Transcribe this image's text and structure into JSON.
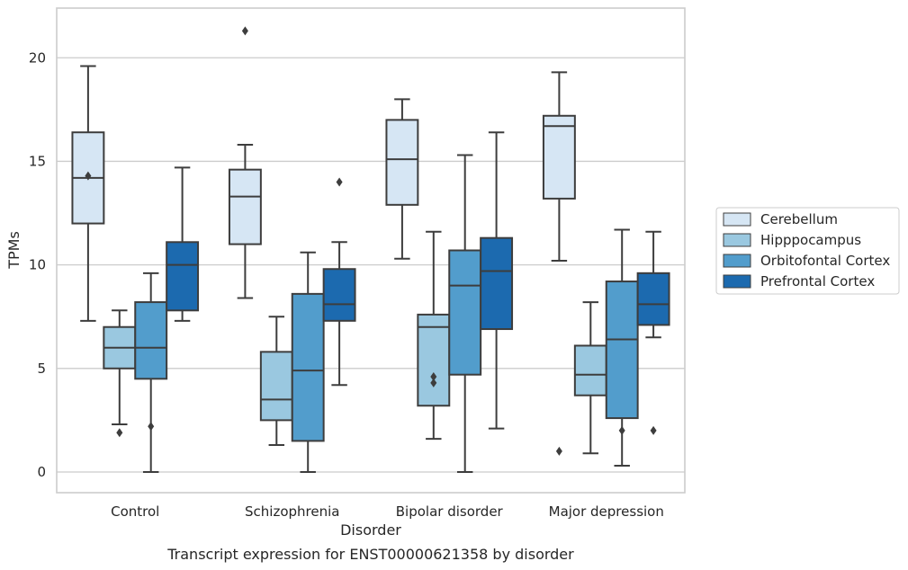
{
  "chart_data": {
    "type": "box",
    "title": "",
    "caption": "Transcript expression for ENST00000621358 by disorder",
    "xlabel": "Disorder",
    "ylabel": "TPMs",
    "ylim": [
      -1,
      22.4
    ],
    "yticks": [
      0,
      5,
      10,
      15,
      20
    ],
    "grid": "horizontal",
    "legend_position": "right",
    "categories": [
      "Control",
      "Schizophrenia",
      "Bipolar disorder",
      "Major depression"
    ],
    "series": [
      {
        "name": "Cerebellum",
        "color": "#d6e6f4",
        "boxes": [
          {
            "whislo": 7.3,
            "q1": 12.0,
            "med": 14.2,
            "q3": 16.4,
            "whishi": 19.6,
            "fliers": [
              14.3
            ]
          },
          {
            "whislo": 8.4,
            "q1": 11.0,
            "med": 13.3,
            "q3": 14.6,
            "whishi": 15.8,
            "fliers": [
              21.3
            ]
          },
          {
            "whislo": 10.3,
            "q1": 12.9,
            "med": 15.1,
            "q3": 17.0,
            "whishi": 18.0,
            "fliers": []
          },
          {
            "whislo": 10.2,
            "q1": 13.2,
            "med": 16.7,
            "q3": 17.2,
            "whishi": 19.3,
            "fliers": [
              1.0
            ]
          }
        ]
      },
      {
        "name": "Hipppocampus",
        "color": "#9ac8e0",
        "boxes": [
          {
            "whislo": 2.3,
            "q1": 5.0,
            "med": 6.0,
            "q3": 7.0,
            "whishi": 7.8,
            "fliers": [
              1.9
            ]
          },
          {
            "whislo": 1.3,
            "q1": 2.5,
            "med": 3.5,
            "q3": 5.8,
            "whishi": 7.5,
            "fliers": []
          },
          {
            "whislo": 1.6,
            "q1": 3.2,
            "med": 7.0,
            "q3": 7.6,
            "whishi": 11.6,
            "fliers": [
              4.3,
              4.6
            ]
          },
          {
            "whislo": 0.9,
            "q1": 3.7,
            "med": 4.7,
            "q3": 6.1,
            "whishi": 8.2,
            "fliers": []
          }
        ]
      },
      {
        "name": "Orbitofontal Cortex",
        "color": "#529dcc",
        "boxes": [
          {
            "whislo": 0.0,
            "q1": 4.5,
            "med": 6.0,
            "q3": 8.2,
            "whishi": 9.6,
            "fliers": [
              2.2
            ]
          },
          {
            "whislo": 0.0,
            "q1": 1.5,
            "med": 4.9,
            "q3": 8.6,
            "whishi": 10.6,
            "fliers": []
          },
          {
            "whislo": 0.0,
            "q1": 4.7,
            "med": 9.0,
            "q3": 10.7,
            "whishi": 15.3,
            "fliers": []
          },
          {
            "whislo": 0.3,
            "q1": 2.6,
            "med": 6.4,
            "q3": 9.2,
            "whishi": 11.7,
            "fliers": [
              2.0
            ]
          }
        ]
      },
      {
        "name": "Prefrontal Cortex",
        "color": "#1c6aaf",
        "boxes": [
          {
            "whislo": 7.3,
            "q1": 7.8,
            "med": 10.0,
            "q3": 11.1,
            "whishi": 14.7,
            "fliers": []
          },
          {
            "whislo": 4.2,
            "q1": 7.3,
            "med": 8.1,
            "q3": 9.8,
            "whishi": 11.1,
            "fliers": [
              14.0
            ]
          },
          {
            "whislo": 2.1,
            "q1": 6.9,
            "med": 9.7,
            "q3": 11.3,
            "whishi": 16.4,
            "fliers": []
          },
          {
            "whislo": 6.5,
            "q1": 7.1,
            "med": 8.1,
            "q3": 9.6,
            "whishi": 11.6,
            "fliers": [
              2.0
            ]
          }
        ]
      }
    ]
  }
}
